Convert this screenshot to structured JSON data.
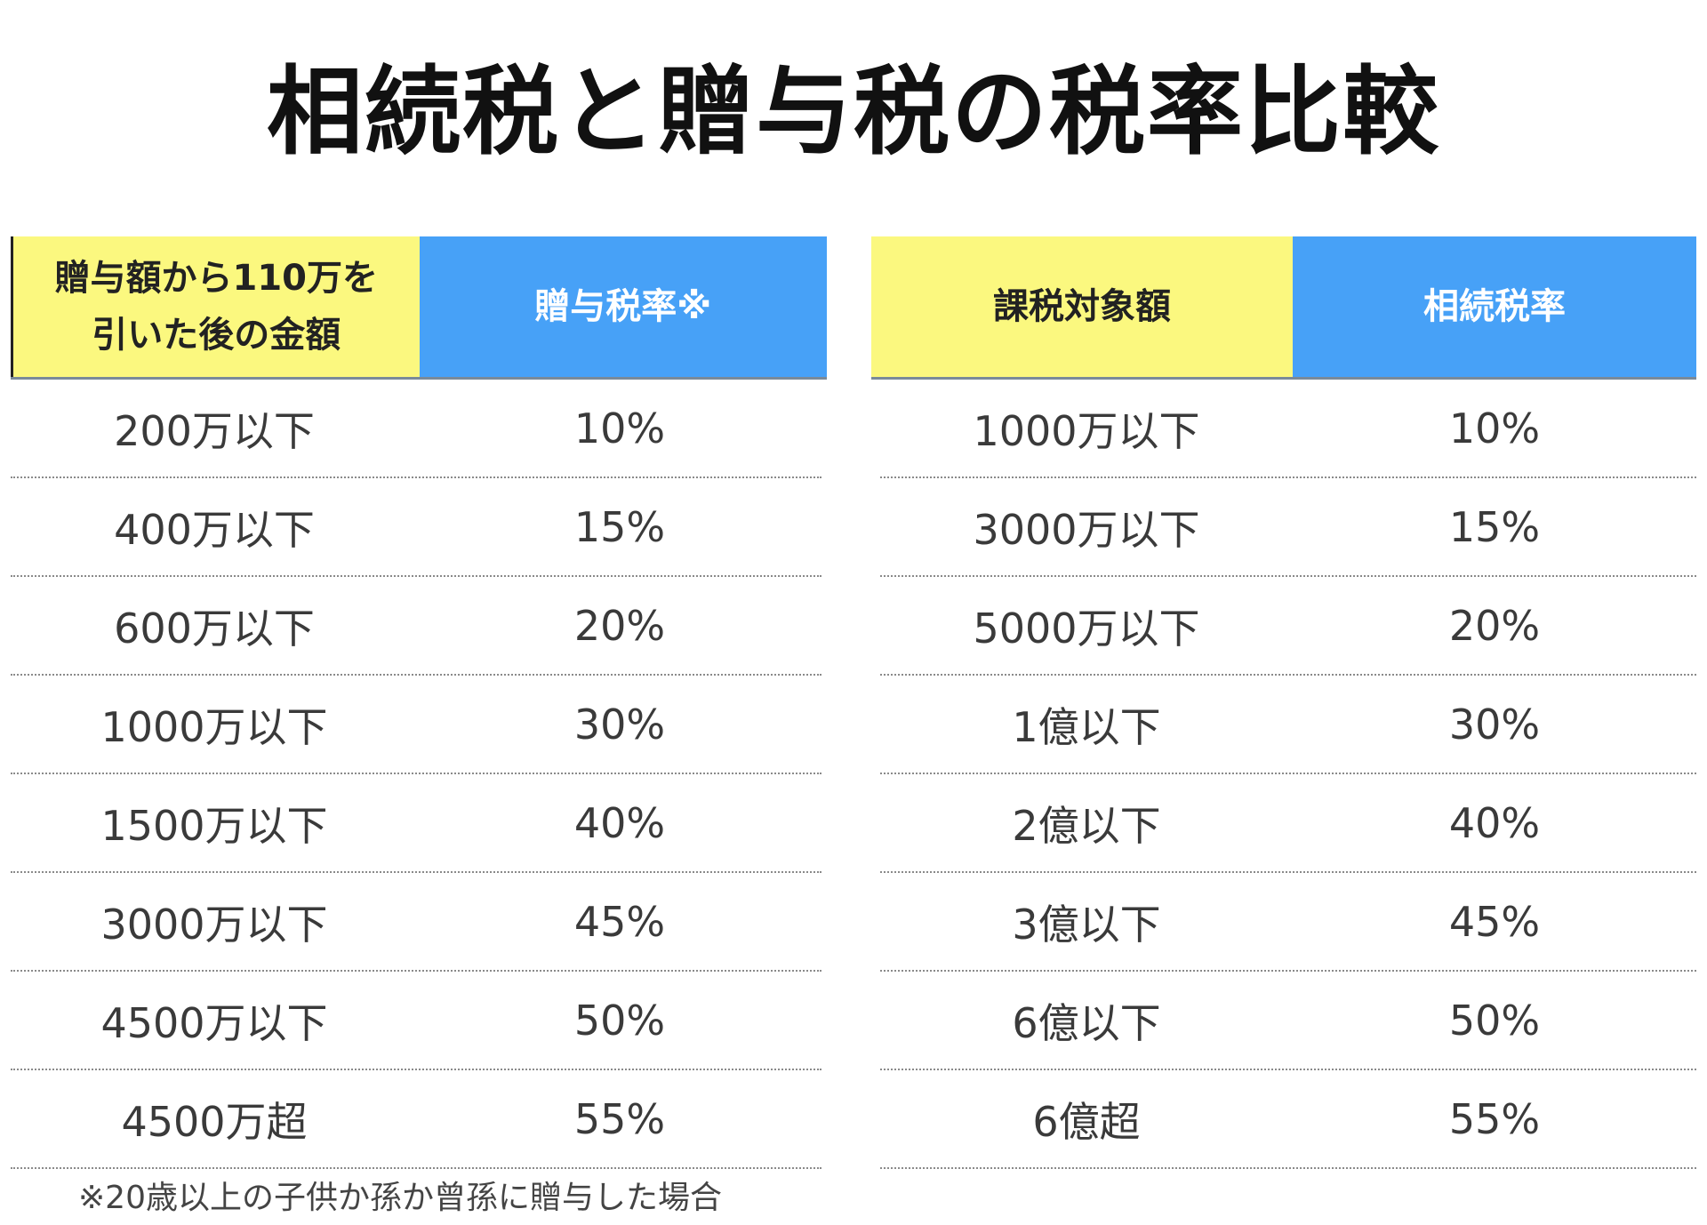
{
  "title": "相続税と贈与税の税率比較",
  "gift_table": {
    "header_amount": "贈与額から110万を\n引いた後の金額",
    "header_rate": "贈与税率※",
    "rows": [
      {
        "amount": "200万以下",
        "rate": "10%"
      },
      {
        "amount": "400万以下",
        "rate": "15%"
      },
      {
        "amount": "600万以下",
        "rate": "20%"
      },
      {
        "amount": "1000万以下",
        "rate": "30%"
      },
      {
        "amount": "1500万以下",
        "rate": "40%"
      },
      {
        "amount": "3000万以下",
        "rate": "45%"
      },
      {
        "amount": "4500万以下",
        "rate": "50%"
      },
      {
        "amount": "4500万超",
        "rate": "55%"
      }
    ]
  },
  "inheritance_table": {
    "header_amount": "課税対象額",
    "header_rate": "相続税率",
    "rows": [
      {
        "amount": "1000万以下",
        "rate": "10%"
      },
      {
        "amount": "3000万以下",
        "rate": "15%"
      },
      {
        "amount": "5000万以下",
        "rate": "20%"
      },
      {
        "amount": "1億以下",
        "rate": "30%"
      },
      {
        "amount": "2億以下",
        "rate": "40%"
      },
      {
        "amount": "3億以下",
        "rate": "45%"
      },
      {
        "amount": "6億以下",
        "rate": "50%"
      },
      {
        "amount": "6億超",
        "rate": "55%"
      }
    ]
  },
  "footnote": "※20歳以上の子供か孫か曾孫に贈与した場合",
  "colors": {
    "header_yellow": "#fbf87f",
    "header_blue": "#47a1f7"
  }
}
